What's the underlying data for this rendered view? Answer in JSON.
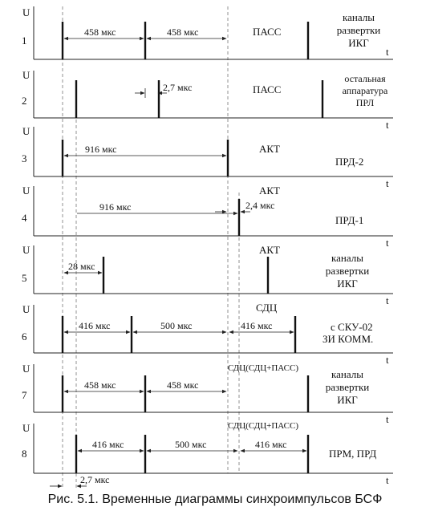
{
  "axis_u": "U",
  "axis_t": "t",
  "caption": "Рис. 5.1. Временные диаграммы синхроимпульсов БСФ",
  "rows": [
    {
      "num": "1",
      "mode": "ПАСС",
      "desc": [
        "каналы",
        "развертки",
        "ИКГ"
      ],
      "dims": [
        "458 мкс",
        "458 мкс"
      ]
    },
    {
      "num": "2",
      "mode": "ПАСС",
      "desc": [
        "остальная",
        "аппаратура",
        "ПРЛ"
      ],
      "dims": [
        "2,7 мкс"
      ]
    },
    {
      "num": "3",
      "mode": "АКТ",
      "desc": [
        "ПРД-2"
      ],
      "dims": [
        "916 мкс"
      ]
    },
    {
      "num": "4",
      "mode": "АКТ",
      "desc": [
        "ПРД-1"
      ],
      "dims": [
        "916 мкс",
        "2,4 мкс"
      ]
    },
    {
      "num": "5",
      "mode": "АКТ",
      "desc": [
        "каналы",
        "развертки",
        "ИКГ"
      ],
      "dims": [
        "28 мкс"
      ]
    },
    {
      "num": "6",
      "mode": "СДЦ",
      "desc": [
        "с СКУ-02",
        "ЗИ КОММ."
      ],
      "dims": [
        "416 мкс",
        "500 мкс",
        "416 мкс"
      ]
    },
    {
      "num": "7",
      "mode": "СДЦ(СДЦ+ПАСС)",
      "desc": [
        "каналы",
        "развертки",
        "ИКГ"
      ],
      "dims": [
        "458 мкс",
        "458 мкс"
      ]
    },
    {
      "num": "8",
      "mode": "СДЦ(СДЦ+ПАСС)",
      "desc": [
        "ПРМ, ПРД"
      ],
      "dims": [
        "416 мкс",
        "500 мкс",
        "416 мкс",
        "2,7 мкс"
      ]
    }
  ]
}
